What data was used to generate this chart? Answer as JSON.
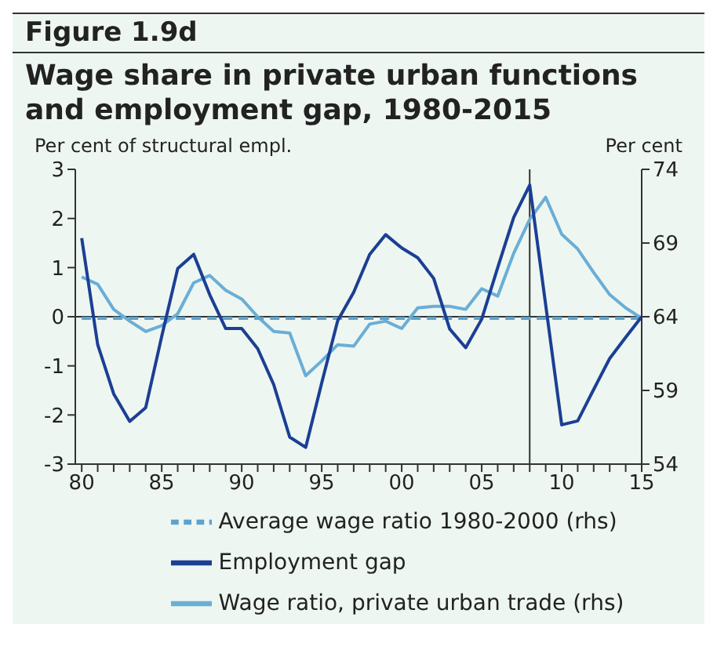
{
  "chart_data": {
    "type": "line",
    "title": "Figure 1.9d",
    "subtitle": "Wage share in private urban functions and employment gap, 1980-2015",
    "ylabel": "Per cent of structural empl.",
    "y2label": "Per cent",
    "x": [
      1980,
      1981,
      1982,
      1983,
      1984,
      1985,
      1986,
      1987,
      1988,
      1989,
      1990,
      1991,
      1992,
      1993,
      1994,
      1995,
      1996,
      1997,
      1998,
      1999,
      2000,
      2001,
      2002,
      2003,
      2004,
      2005,
      2006,
      2007,
      2008,
      2009,
      2010,
      2011,
      2012,
      2013,
      2014,
      2015
    ],
    "series": [
      {
        "name": "Wage ratio, private urban trade (rhs)",
        "color": "#6aaed6",
        "axis": "y2",
        "values": [
          66.7,
          66.2,
          64.5,
          63.7,
          63.0,
          63.4,
          64.2,
          66.3,
          66.8,
          65.8,
          65.2,
          64.0,
          63.0,
          62.9,
          60.0,
          61.0,
          62.1,
          62.0,
          63.5,
          63.7,
          63.2,
          64.6,
          64.7,
          64.7,
          64.5,
          65.9,
          65.4,
          68.3,
          70.6,
          72.1,
          69.6,
          68.6,
          67.0,
          65.5,
          64.6,
          63.9
        ]
      },
      {
        "name": "Average wage ratio 1980-2000 (rhs)",
        "color": "#5ba3cf",
        "axis": "y2",
        "line_style": "dashed",
        "x": [
          1980,
          2015
        ],
        "values": [
          63.9,
          63.9
        ]
      },
      {
        "name": "Employment gap",
        "color": "#1b3f94",
        "values": [
          1.6,
          -0.57,
          -1.57,
          -2.13,
          -1.85,
          -0.4,
          0.98,
          1.27,
          0.45,
          -0.24,
          -0.24,
          -0.65,
          -1.38,
          -2.45,
          -2.66,
          -1.35,
          -0.08,
          0.5,
          1.27,
          1.67,
          1.4,
          1.2,
          0.78,
          -0.25,
          -0.63,
          -0.05,
          1.0,
          2.02,
          2.68,
          0.24,
          -2.2,
          -2.12,
          -1.48,
          -0.85,
          -0.42,
          0
        ]
      }
    ],
    "xlim": [
      1979.6,
      2015
    ],
    "xticks": [
      {
        "value": 1980,
        "label": "80"
      },
      {
        "value": 1981,
        "label": null
      },
      {
        "value": 1982,
        "label": null
      },
      {
        "value": 1983,
        "label": null
      },
      {
        "value": 1984,
        "label": null
      },
      {
        "value": 1985,
        "label": "85"
      },
      {
        "value": 1986,
        "label": null
      },
      {
        "value": 1987,
        "label": null
      },
      {
        "value": 1988,
        "label": null
      },
      {
        "value": 1989,
        "label": null
      },
      {
        "value": 1990,
        "label": "90"
      },
      {
        "value": 1991,
        "label": null
      },
      {
        "value": 1992,
        "label": null
      },
      {
        "value": 1993,
        "label": null
      },
      {
        "value": 1994,
        "label": null
      },
      {
        "value": 1995,
        "label": "95"
      },
      {
        "value": 1996,
        "label": null
      },
      {
        "value": 1997,
        "label": null
      },
      {
        "value": 1998,
        "label": null
      },
      {
        "value": 1999,
        "label": null
      },
      {
        "value": 2000,
        "label": "00"
      },
      {
        "value": 2001,
        "label": null
      },
      {
        "value": 2002,
        "label": null
      },
      {
        "value": 2003,
        "label": null
      },
      {
        "value": 2004,
        "label": null
      },
      {
        "value": 2005,
        "label": "05"
      },
      {
        "value": 2006,
        "label": null
      },
      {
        "value": 2007,
        "label": null
      },
      {
        "value": 2008,
        "label": null
      },
      {
        "value": 2009,
        "label": null
      },
      {
        "value": 2010,
        "label": "10"
      },
      {
        "value": 2011,
        "label": null
      },
      {
        "value": 2012,
        "label": null
      },
      {
        "value": 2013,
        "label": null
      },
      {
        "value": 2014,
        "label": null
      },
      {
        "value": 2015,
        "label": "15"
      }
    ],
    "ylim": [
      -3,
      3
    ],
    "yticks": [
      -3,
      -2,
      -1,
      0,
      1,
      2,
      3
    ],
    "y2lim": [
      54,
      74
    ],
    "y2ticks": [
      54,
      59,
      64,
      69,
      74
    ],
    "ref_lines": [
      {
        "axis": "y",
        "value": 0,
        "color": "#333333"
      },
      {
        "axis": "x",
        "value": 2008,
        "color": "#333333"
      }
    ],
    "grid": false,
    "legend": "bottom",
    "marker": "none"
  }
}
